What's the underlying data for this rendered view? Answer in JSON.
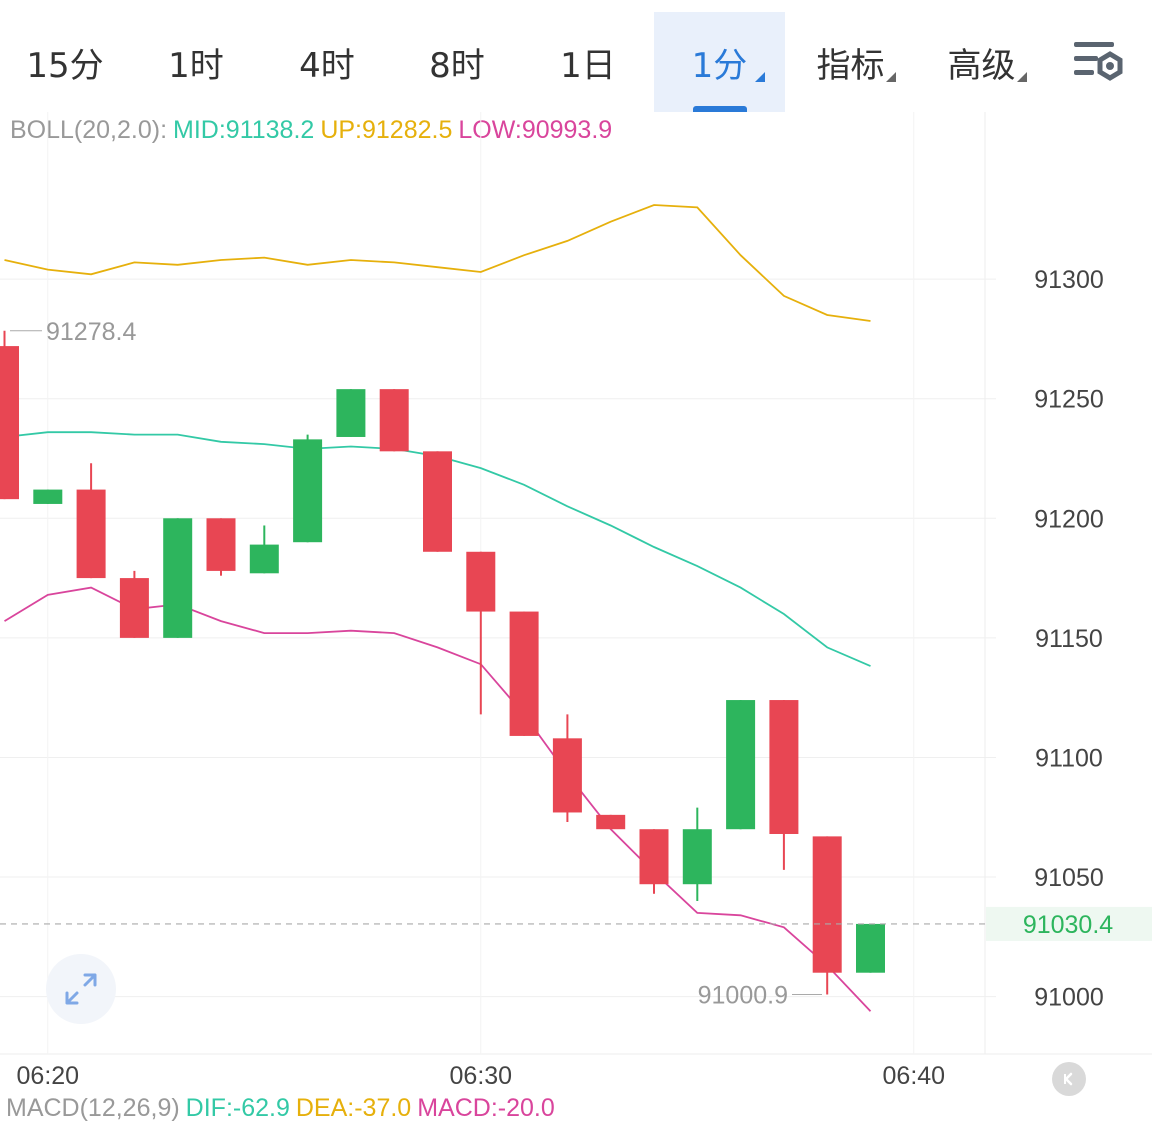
{
  "tabs": [
    {
      "label": "15分",
      "active": false,
      "dropdown": false
    },
    {
      "label": "1时",
      "active": false,
      "dropdown": false
    },
    {
      "label": "4时",
      "active": false,
      "dropdown": false
    },
    {
      "label": "8时",
      "active": false,
      "dropdown": false
    },
    {
      "label": "1日",
      "active": false,
      "dropdown": false
    },
    {
      "label": "1分",
      "active": true,
      "dropdown": true
    },
    {
      "label": "指标",
      "active": false,
      "dropdown": true
    },
    {
      "label": "高级",
      "active": false,
      "dropdown": true
    }
  ],
  "icons": {
    "settings": "chart-settings-icon",
    "expand": "expand-arrows-icon",
    "collapse": "chevron-left-icon"
  },
  "boll_legend": {
    "name": "BOLL(20,2.0):",
    "mid": "MID:91138.2",
    "up": "UP:91282.5",
    "low": "LOW:90993.9"
  },
  "macd_legend": {
    "name": "MACD(12,26,9)",
    "dif": "DIF:-62.9",
    "dea": "DEA:-37.0",
    "macd": "MACD:-20.0"
  },
  "colors": {
    "up_candle": "#2db55d",
    "down_candle": "#e84653",
    "boll_mid": "#33c9a6",
    "boll_up": "#e6b00c",
    "boll_low": "#d9459c",
    "accent": "#2a7ad8",
    "price_axis_text": "#444444",
    "current_price_text": "#2db55d",
    "legend_name": "#999999"
  },
  "chart_data": {
    "type": "candlestick",
    "ylim": [
      90985,
      91345
    ],
    "y_ticks": [
      91300,
      91250,
      91200,
      91150,
      91100,
      91050,
      91000
    ],
    "x_ticks": [
      {
        "label": "06:20",
        "index": 1
      },
      {
        "label": "06:30",
        "index": 11
      },
      {
        "label": "06:40",
        "index": 21
      }
    ],
    "candles": [
      {
        "open": 91272,
        "close": 91208,
        "high": 91278.4,
        "low": 91208
      },
      {
        "open": 91206,
        "close": 91212,
        "high": 91212,
        "low": 91206
      },
      {
        "open": 91212,
        "close": 91175,
        "high": 91223,
        "low": 91175
      },
      {
        "open": 91175,
        "close": 91150,
        "high": 91178,
        "low": 91150
      },
      {
        "open": 91150,
        "close": 91200,
        "high": 91200,
        "low": 91150
      },
      {
        "open": 91200,
        "close": 91178,
        "high": 91200,
        "low": 91176
      },
      {
        "open": 91177,
        "close": 91189,
        "high": 91197,
        "low": 91177
      },
      {
        "open": 91190,
        "close": 91233,
        "high": 91235,
        "low": 91190
      },
      {
        "open": 91234,
        "close": 91254,
        "high": 91254,
        "low": 91234
      },
      {
        "open": 91254,
        "close": 91228,
        "high": 91254,
        "low": 91228
      },
      {
        "open": 91228,
        "close": 91186,
        "high": 91228,
        "low": 91186
      },
      {
        "open": 91186,
        "close": 91161,
        "high": 91186,
        "low": 91118
      },
      {
        "open": 91161,
        "close": 91109,
        "high": 91161,
        "low": 91109
      },
      {
        "open": 91108,
        "close": 91077,
        "high": 91118,
        "low": 91073
      },
      {
        "open": 91076,
        "close": 91070,
        "high": 91076,
        "low": 91070
      },
      {
        "open": 91070,
        "close": 91047,
        "high": 91070,
        "low": 91043
      },
      {
        "open": 91047,
        "close": 91070,
        "high": 91079,
        "low": 91040
      },
      {
        "open": 91070,
        "close": 91124,
        "high": 91124,
        "low": 91070
      },
      {
        "open": 91124,
        "close": 91068,
        "high": 91124,
        "low": 91053
      },
      {
        "open": 91067,
        "close": 91010,
        "high": 91067,
        "low": 91000.9
      },
      {
        "open": 91010,
        "close": 91030.4,
        "high": 91030.4,
        "low": 91010
      }
    ],
    "boll_up": [
      91308,
      91304,
      91302,
      91307,
      91306,
      91308,
      91309,
      91306,
      91308,
      91307,
      91305,
      91303,
      91310,
      91316,
      91324,
      91331,
      91330,
      91310,
      91293,
      91285,
      91282.5
    ],
    "boll_mid": [
      91234,
      91236,
      91236,
      91235,
      91235,
      91232,
      91231,
      91229,
      91230,
      91229,
      91226,
      91221,
      91214,
      91205,
      91197,
      91188,
      91180,
      91171,
      91160,
      91146,
      91138.2
    ],
    "boll_low": [
      91157,
      91168,
      91171,
      91162,
      91164,
      91157,
      91152,
      91152,
      91153,
      91152,
      91146,
      91139,
      91118,
      91093,
      91070,
      91052,
      91035,
      91034,
      91029,
      91013,
      90993.9
    ],
    "annotations": {
      "high_label": "91278.4",
      "low_label": "91000.9",
      "current_price": "91030.4"
    }
  }
}
